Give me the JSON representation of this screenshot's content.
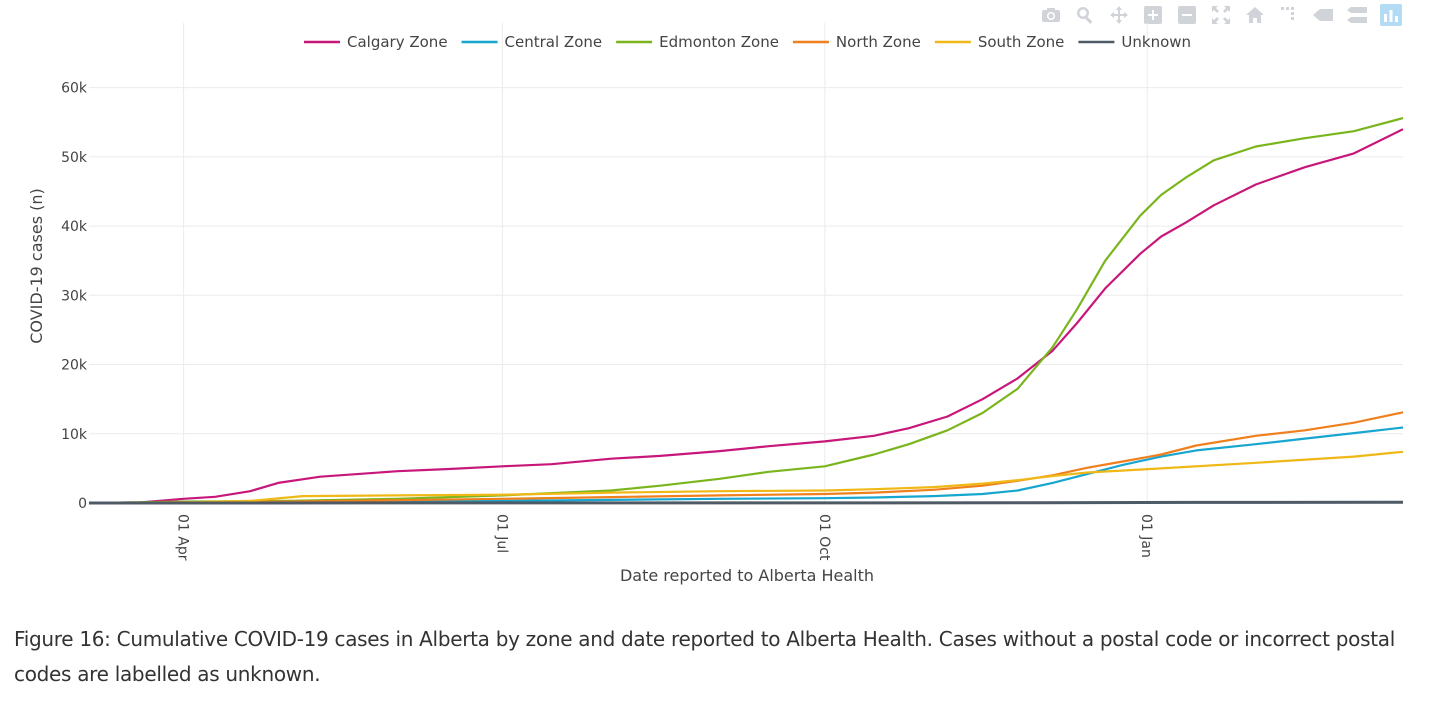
{
  "modebar": {
    "buttons": [
      {
        "name": "camera-icon"
      },
      {
        "name": "zoom-icon"
      },
      {
        "name": "pan-icon"
      },
      {
        "name": "zoom-in-icon"
      },
      {
        "name": "zoom-out-icon"
      },
      {
        "name": "autoscale-icon"
      },
      {
        "name": "reset-axes-icon"
      },
      {
        "name": "spike-lines-icon"
      },
      {
        "name": "hover-closest-icon"
      },
      {
        "name": "hover-compare-icon"
      },
      {
        "name": "plotly-logo-icon"
      }
    ]
  },
  "chart_data": {
    "type": "line",
    "title": "",
    "xlabel": "Date reported to Alberta Health",
    "ylabel": "COVID-19 cases (n)",
    "xlim": [
      "2020-03-05",
      "2021-03-15"
    ],
    "ylim": [
      0,
      65000
    ],
    "xticks": [
      {
        "date": "2020-04-01",
        "label": "01 Apr"
      },
      {
        "date": "2020-07-01",
        "label": "01 Jul"
      },
      {
        "date": "2020-10-01",
        "label": "01 Oct"
      },
      {
        "date": "2021-01-01",
        "label": "01 Jan"
      }
    ],
    "yticks": [
      {
        "value": 0,
        "label": "0"
      },
      {
        "value": 10000,
        "label": "10k"
      },
      {
        "value": 20000,
        "label": "20k"
      },
      {
        "value": 30000,
        "label": "30k"
      },
      {
        "value": 40000,
        "label": "40k"
      },
      {
        "value": 50000,
        "label": "50k"
      },
      {
        "value": 60000,
        "label": "60k"
      }
    ],
    "grid": true,
    "legend": "top-center",
    "series": [
      {
        "name": "Calgary Zone",
        "color": "#c8177a",
        "points": [
          [
            "2020-03-05",
            0
          ],
          [
            "2020-03-20",
            100
          ],
          [
            "2020-04-01",
            600
          ],
          [
            "2020-04-10",
            900
          ],
          [
            "2020-04-20",
            1700
          ],
          [
            "2020-04-28",
            2900
          ],
          [
            "2020-05-10",
            3800
          ],
          [
            "2020-06-01",
            4600
          ],
          [
            "2020-06-15",
            4900
          ],
          [
            "2020-07-01",
            5300
          ],
          [
            "2020-07-15",
            5600
          ],
          [
            "2020-08-01",
            6400
          ],
          [
            "2020-08-15",
            6800
          ],
          [
            "2020-09-01",
            7500
          ],
          [
            "2020-09-15",
            8200
          ],
          [
            "2020-10-01",
            8900
          ],
          [
            "2020-10-15",
            9700
          ],
          [
            "2020-10-25",
            10800
          ],
          [
            "2020-11-05",
            12500
          ],
          [
            "2020-11-15",
            15000
          ],
          [
            "2020-11-25",
            18000
          ],
          [
            "2020-12-05",
            22000
          ],
          [
            "2020-12-12",
            26000
          ],
          [
            "2020-12-20",
            31000
          ],
          [
            "2020-12-30",
            36000
          ],
          [
            "2021-01-05",
            38500
          ],
          [
            "2021-01-12",
            40500
          ],
          [
            "2021-01-20",
            43000
          ],
          [
            "2021-02-01",
            46000
          ],
          [
            "2021-02-15",
            48500
          ],
          [
            "2021-03-01",
            50500
          ],
          [
            "2021-03-15",
            54000
          ]
        ]
      },
      {
        "name": "Central Zone",
        "color": "#17a6cf",
        "points": [
          [
            "2020-03-05",
            0
          ],
          [
            "2020-04-01",
            20
          ],
          [
            "2020-05-01",
            100
          ],
          [
            "2020-06-01",
            200
          ],
          [
            "2020-07-01",
            300
          ],
          [
            "2020-08-01",
            450
          ],
          [
            "2020-09-01",
            600
          ],
          [
            "2020-10-01",
            700
          ],
          [
            "2020-10-15",
            800
          ],
          [
            "2020-11-01",
            1000
          ],
          [
            "2020-11-15",
            1300
          ],
          [
            "2020-11-25",
            1800
          ],
          [
            "2020-12-05",
            2900
          ],
          [
            "2020-12-15",
            4200
          ],
          [
            "2020-12-25",
            5500
          ],
          [
            "2021-01-05",
            6700
          ],
          [
            "2021-01-15",
            7600
          ],
          [
            "2021-02-01",
            8500
          ],
          [
            "2021-02-15",
            9300
          ],
          [
            "2021-03-01",
            10100
          ],
          [
            "2021-03-15",
            10900
          ]
        ]
      },
      {
        "name": "Edmonton Zone",
        "color": "#7ab51d",
        "points": [
          [
            "2020-03-05",
            0
          ],
          [
            "2020-04-01",
            200
          ],
          [
            "2020-05-01",
            300
          ],
          [
            "2020-06-01",
            600
          ],
          [
            "2020-07-01",
            1100
          ],
          [
            "2020-08-01",
            1800
          ],
          [
            "2020-08-15",
            2500
          ],
          [
            "2020-09-01",
            3500
          ],
          [
            "2020-09-15",
            4500
          ],
          [
            "2020-10-01",
            5300
          ],
          [
            "2020-10-15",
            7000
          ],
          [
            "2020-10-25",
            8500
          ],
          [
            "2020-11-05",
            10500
          ],
          [
            "2020-11-15",
            13000
          ],
          [
            "2020-11-25",
            16500
          ],
          [
            "2020-12-05",
            22500
          ],
          [
            "2020-12-12",
            28000
          ],
          [
            "2020-12-20",
            35000
          ],
          [
            "2020-12-30",
            41500
          ],
          [
            "2021-01-05",
            44500
          ],
          [
            "2021-01-12",
            47000
          ],
          [
            "2021-01-20",
            49500
          ],
          [
            "2021-02-01",
            51500
          ],
          [
            "2021-02-15",
            52700
          ],
          [
            "2021-03-01",
            53700
          ],
          [
            "2021-03-15",
            55600
          ]
        ]
      },
      {
        "name": "North Zone",
        "color": "#f07f1d",
        "points": [
          [
            "2020-03-05",
            0
          ],
          [
            "2020-04-01",
            80
          ],
          [
            "2020-05-01",
            200
          ],
          [
            "2020-06-01",
            400
          ],
          [
            "2020-07-01",
            600
          ],
          [
            "2020-08-01",
            850
          ],
          [
            "2020-09-01",
            1100
          ],
          [
            "2020-10-01",
            1300
          ],
          [
            "2020-10-15",
            1500
          ],
          [
            "2020-11-01",
            1900
          ],
          [
            "2020-11-15",
            2500
          ],
          [
            "2020-11-25",
            3200
          ],
          [
            "2020-12-05",
            4000
          ],
          [
            "2020-12-15",
            5100
          ],
          [
            "2020-12-25",
            6000
          ],
          [
            "2021-01-05",
            7000
          ],
          [
            "2021-01-15",
            8300
          ],
          [
            "2021-02-01",
            9700
          ],
          [
            "2021-02-15",
            10500
          ],
          [
            "2021-03-01",
            11600
          ],
          [
            "2021-03-15",
            13100
          ]
        ]
      },
      {
        "name": "South Zone",
        "color": "#efb816",
        "points": [
          [
            "2020-03-05",
            0
          ],
          [
            "2020-04-01",
            100
          ],
          [
            "2020-04-20",
            300
          ],
          [
            "2020-05-05",
            1000
          ],
          [
            "2020-06-01",
            1100
          ],
          [
            "2020-07-01",
            1200
          ],
          [
            "2020-08-01",
            1500
          ],
          [
            "2020-09-01",
            1700
          ],
          [
            "2020-10-01",
            1800
          ],
          [
            "2020-10-15",
            2000
          ],
          [
            "2020-11-01",
            2300
          ],
          [
            "2020-11-15",
            2800
          ],
          [
            "2020-11-25",
            3300
          ],
          [
            "2020-12-05",
            3900
          ],
          [
            "2020-12-15",
            4400
          ],
          [
            "2021-01-05",
            5000
          ],
          [
            "2021-02-01",
            5800
          ],
          [
            "2021-03-01",
            6700
          ],
          [
            "2021-03-15",
            7400
          ]
        ]
      },
      {
        "name": "Unknown",
        "color": "#4e5a65",
        "points": [
          [
            "2020-03-05",
            0
          ],
          [
            "2020-06-01",
            10
          ],
          [
            "2020-10-01",
            20
          ],
          [
            "2020-12-01",
            50
          ],
          [
            "2021-01-15",
            80
          ],
          [
            "2021-03-15",
            100
          ]
        ]
      }
    ]
  },
  "caption": {
    "text": "Figure 16: Cumulative COVID-19 cases in Alberta by zone and date reported to Alberta Health. Cases without a postal code or incorrect postal codes are labelled as unknown."
  }
}
